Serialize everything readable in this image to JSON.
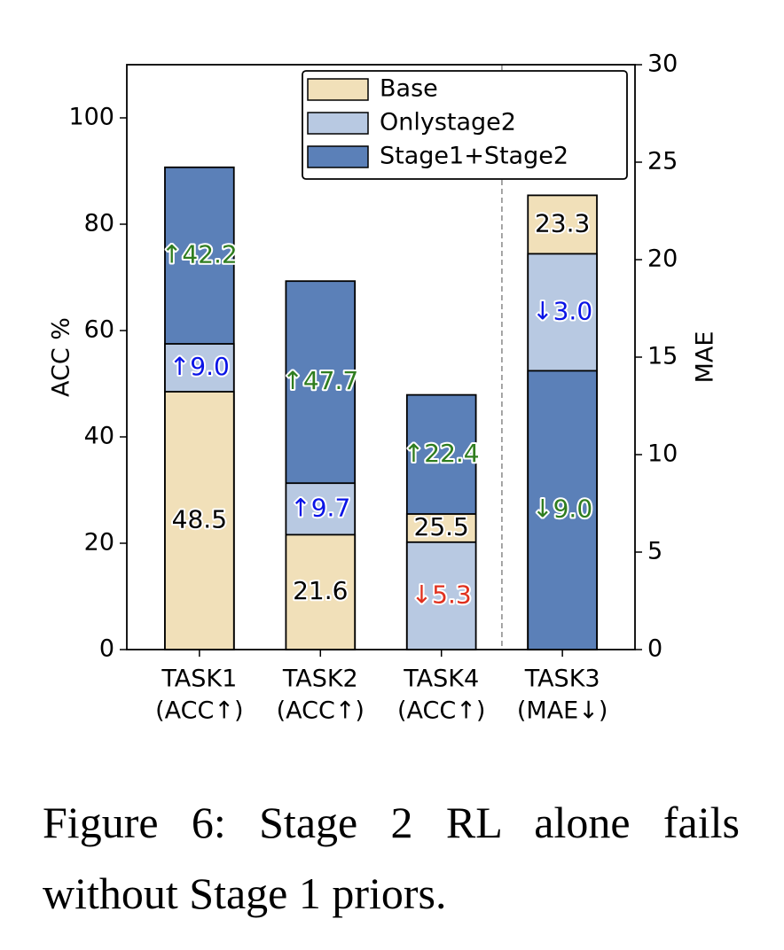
{
  "chart_data": {
    "type": "bar",
    "y_label": "ACC %",
    "y2_label": "MAE",
    "categories": [
      [
        "TASK1",
        "(ACC↑)"
      ],
      [
        "TASK2",
        "(ACC↑)"
      ],
      [
        "TASK4",
        "(ACC↑)"
      ],
      [
        "TASK3",
        "(MAE↓)"
      ]
    ],
    "category_axis": [
      "y",
      "y",
      "y",
      "y2"
    ],
    "series": [
      {
        "name": "Base",
        "color": "#f1e0b9",
        "values": [
          48.5,
          21.6,
          25.5,
          23.3
        ]
      },
      {
        "name": "Onlystage2",
        "color": "#b8c9e2",
        "values": [
          57.5,
          31.3,
          20.2,
          20.3
        ],
        "annotations": [
          "↑9.0",
          "↑9.7",
          "↓5.3",
          "↓3.0"
        ],
        "annotation_colors": [
          "#0a14e6",
          "#0a14e6",
          "#e0301e",
          "#0a14e6"
        ]
      },
      {
        "name": "Stage1+Stage2",
        "color": "#5b80b8",
        "values": [
          90.7,
          69.3,
          47.9,
          14.3
        ],
        "annotations": [
          "↑42.2",
          "↑47.7",
          "↑22.4",
          "↓9.0"
        ],
        "annotation_colors": [
          "#2f7d1f",
          "#2f7d1f",
          "#2f7d1f",
          "#2f7d1f"
        ]
      }
    ],
    "ylim": [
      0,
      110
    ],
    "yticks": [
      0,
      20,
      40,
      60,
      80,
      100
    ],
    "y2lim": [
      0,
      30
    ],
    "y2ticks": [
      0,
      5,
      10,
      15,
      20,
      25,
      30
    ],
    "legend": "upper right"
  },
  "caption": "Figure 6: Stage 2 RL alone fails without Stage 1 priors."
}
